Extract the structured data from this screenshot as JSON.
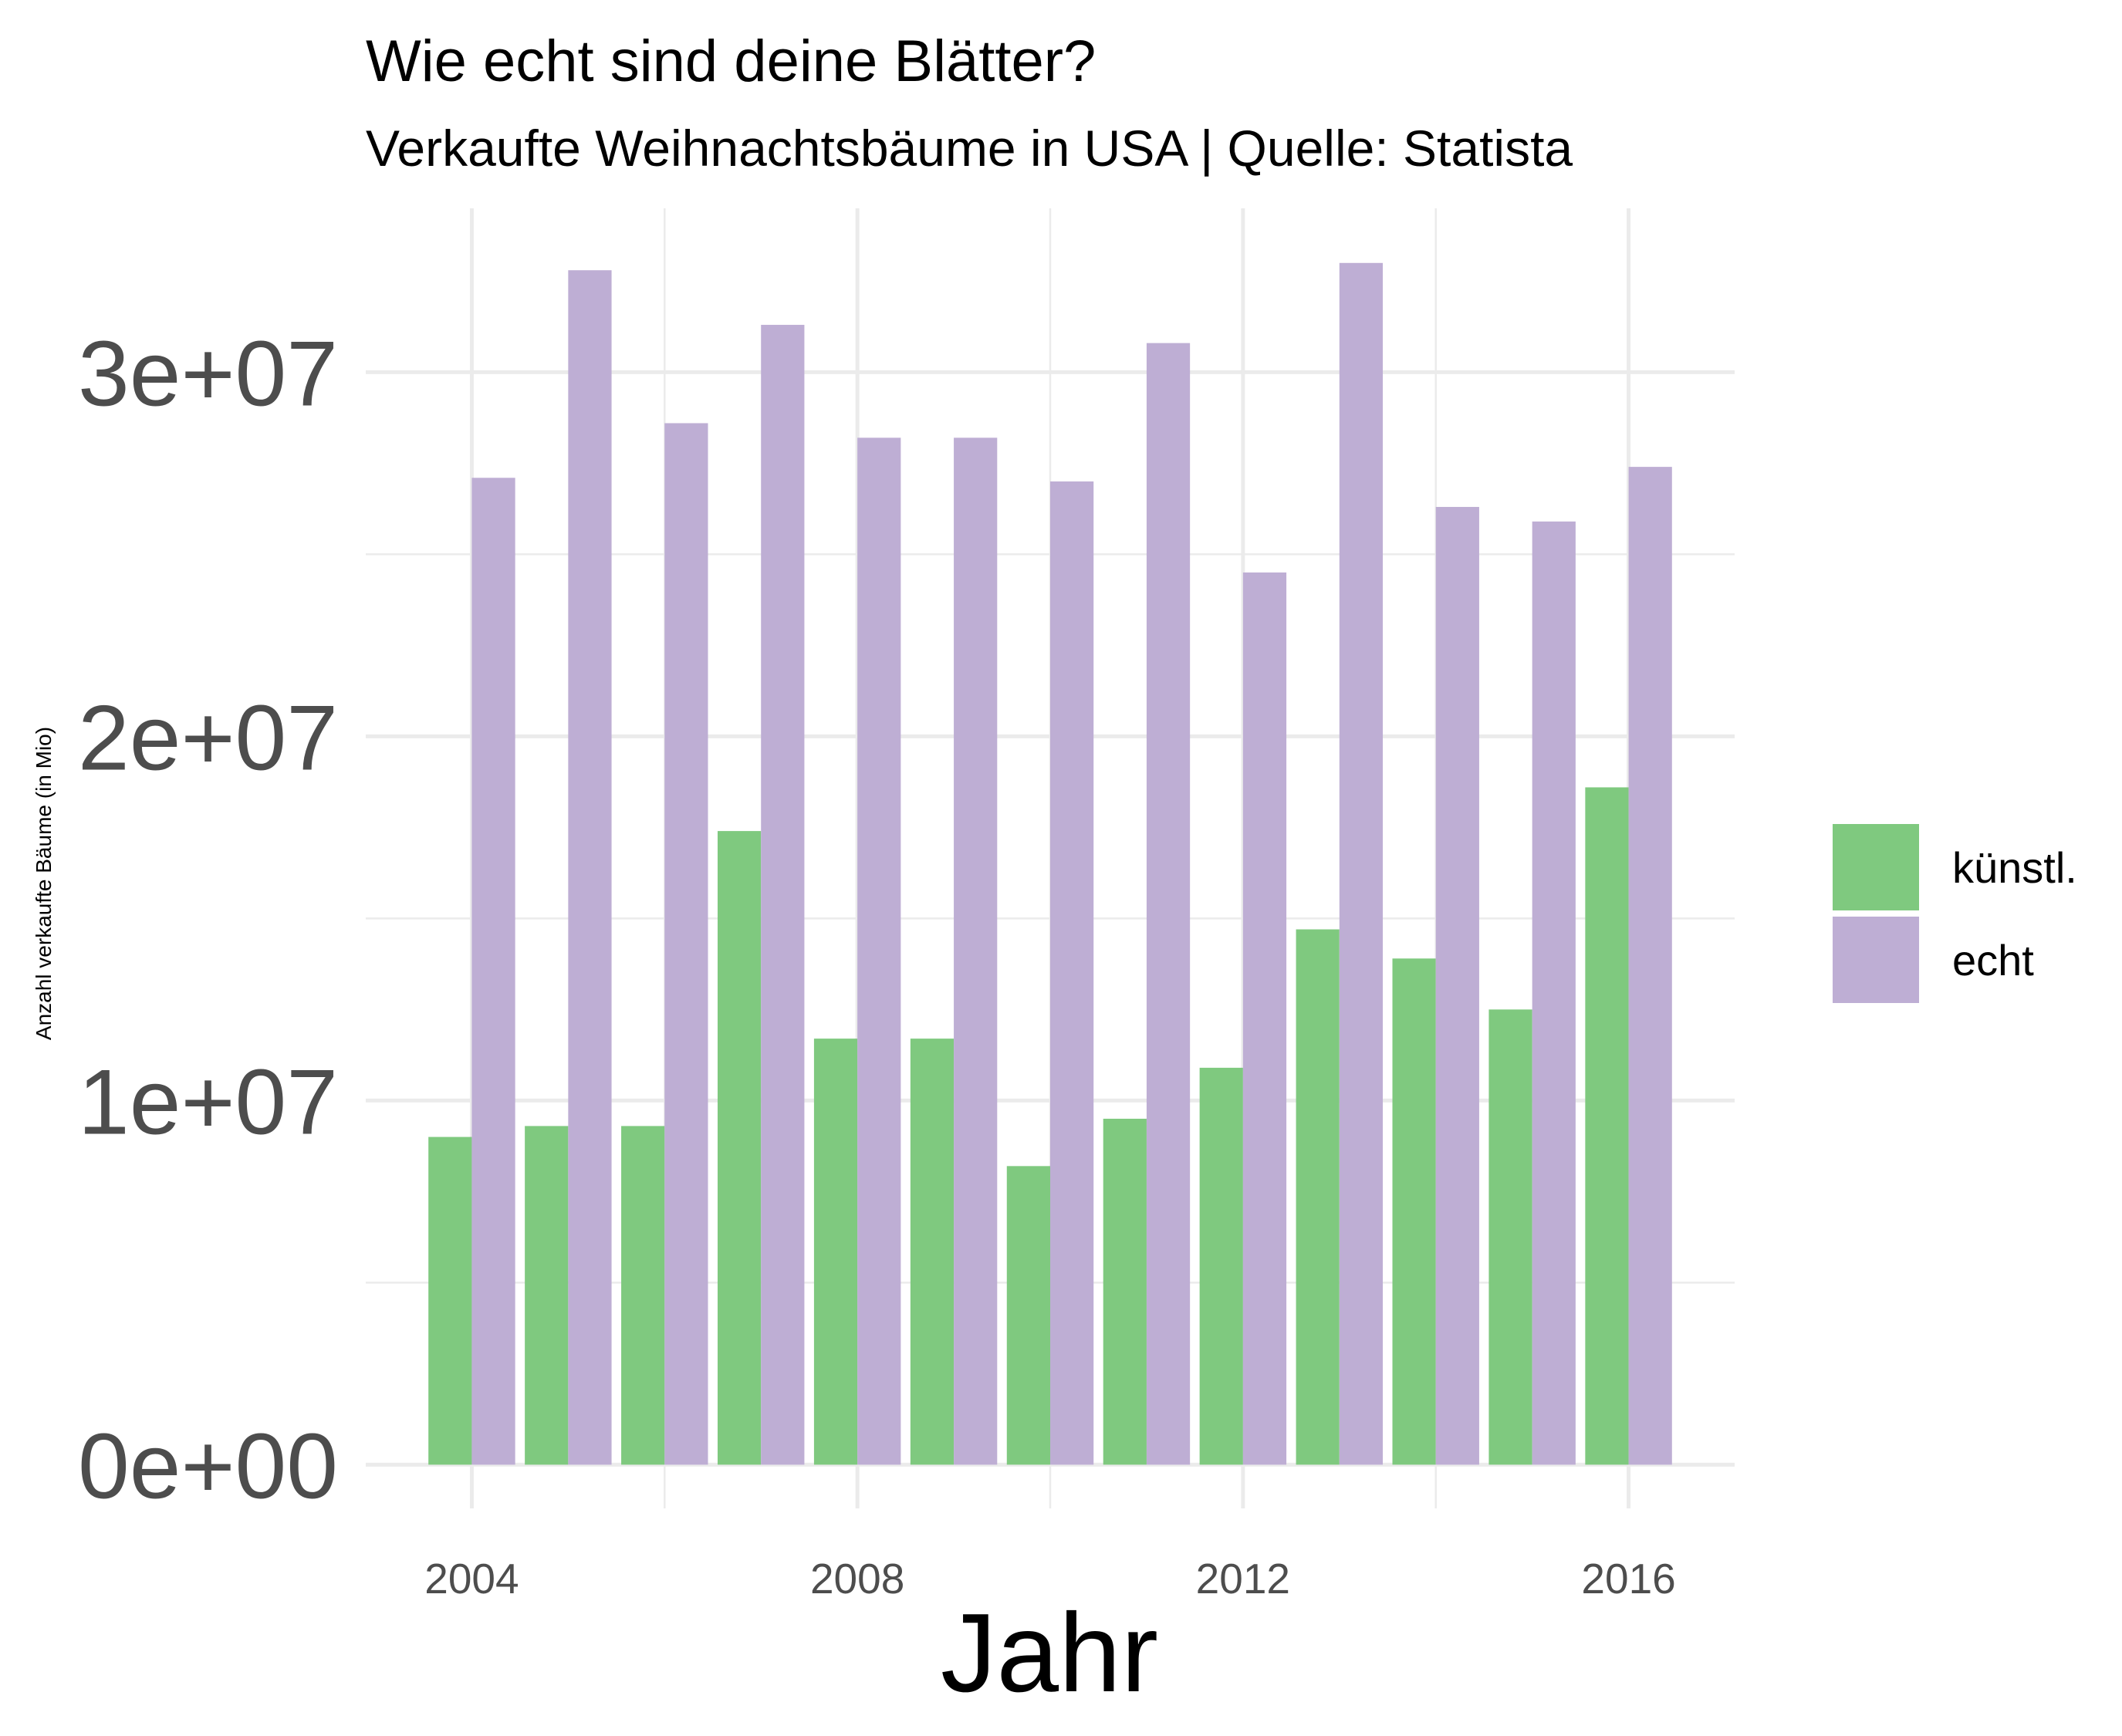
{
  "chart_data": {
    "type": "bar",
    "title": "Wie echt sind deine Blätter?",
    "subtitle": "Verkaufte Weihnachtsbäume in USA | Quelle: Statista",
    "xlabel": "Jahr",
    "ylabel": "Anzahl verkaufte Bäume (in Mio)",
    "x": [
      2004,
      2005,
      2006,
      2007,
      2008,
      2009,
      2010,
      2011,
      2012,
      2013,
      2014,
      2015,
      2016
    ],
    "xticks": [
      2004,
      2008,
      2012,
      2016
    ],
    "xtick_labels": [
      "2004",
      "2008",
      "2012",
      "2016"
    ],
    "xlim": [
      2002.9,
      2017.1
    ],
    "yticks": [
      0,
      10000000,
      20000000,
      30000000
    ],
    "ytick_labels": [
      "0e+00",
      "1e+07",
      "2e+07",
      "3e+07"
    ],
    "ylim": [
      -1200000,
      34500000
    ],
    "grid": true,
    "legend_position": "right",
    "series": [
      {
        "name": "künstl.",
        "color": "#7fc97f",
        "values": [
          9000000,
          9300000,
          9300000,
          17400000,
          11700000,
          11700000,
          8200000,
          9500000,
          10900000,
          14700000,
          13900000,
          12500000,
          18600000
        ]
      },
      {
        "name": "echt",
        "color": "#beaed4",
        "values": [
          27100000,
          32800000,
          28600000,
          31300000,
          28200000,
          28200000,
          27000000,
          30800000,
          24500000,
          33000000,
          26300000,
          25900000,
          27400000
        ]
      }
    ]
  }
}
